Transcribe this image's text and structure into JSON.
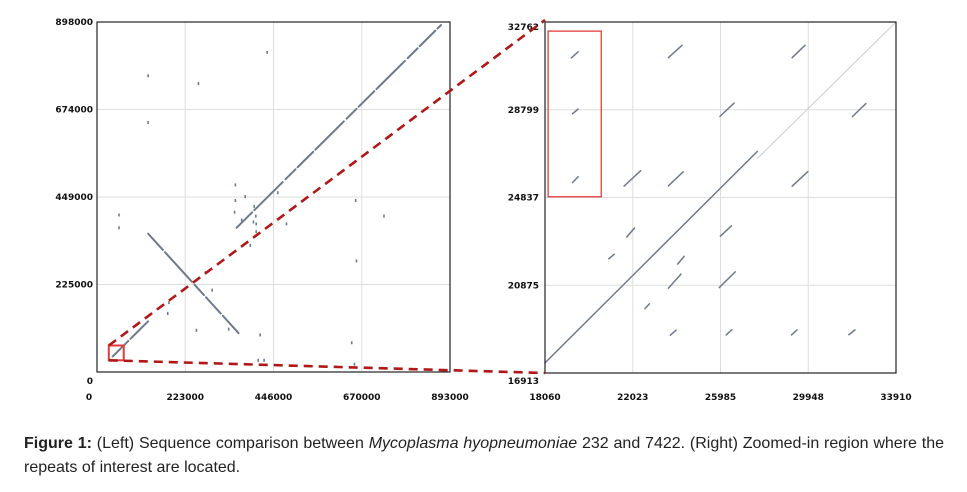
{
  "chart_data": [
    {
      "type": "scatter",
      "panel": "left",
      "xlim": [
        0,
        898000
      ],
      "ylim": [
        0,
        898000
      ],
      "x_ticks": [
        "0",
        "223000",
        "446000",
        "670000",
        "893000"
      ],
      "y_ticks": [
        "0",
        "225000",
        "449000",
        "674000",
        "898000"
      ],
      "grid": true,
      "highlight_box": {
        "x0": 30000,
        "x1": 68000,
        "y0": 30000,
        "y1": 68000
      },
      "segments": [
        {
          "x0": 40000,
          "y0": 40000,
          "x1": 130000,
          "y1": 130000
        },
        {
          "x0": 355000,
          "y0": 370000,
          "x1": 875000,
          "y1": 890000
        },
        {
          "x0": 130000,
          "y0": 355000,
          "x1": 360000,
          "y1": 100000
        }
      ],
      "points": [
        {
          "x": 130000,
          "y": 760000
        },
        {
          "x": 130000,
          "y": 640000
        },
        {
          "x": 258000,
          "y": 740000
        },
        {
          "x": 433000,
          "y": 820000
        },
        {
          "x": 56000,
          "y": 403000
        },
        {
          "x": 56000,
          "y": 370000
        },
        {
          "x": 350000,
          "y": 410000
        },
        {
          "x": 352000,
          "y": 440000
        },
        {
          "x": 400000,
          "y": 425000
        },
        {
          "x": 404000,
          "y": 400000
        },
        {
          "x": 398000,
          "y": 385000
        },
        {
          "x": 405000,
          "y": 360000
        },
        {
          "x": 405000,
          "y": 380000
        },
        {
          "x": 368000,
          "y": 390000
        },
        {
          "x": 482000,
          "y": 380000
        },
        {
          "x": 730000,
          "y": 400000
        },
        {
          "x": 658000,
          "y": 440000
        },
        {
          "x": 293000,
          "y": 210000
        },
        {
          "x": 276000,
          "y": 255000
        },
        {
          "x": 183000,
          "y": 178000
        },
        {
          "x": 180000,
          "y": 150000
        },
        {
          "x": 253000,
          "y": 107000
        },
        {
          "x": 335000,
          "y": 110000
        },
        {
          "x": 415000,
          "y": 95000
        },
        {
          "x": 648000,
          "y": 75000
        },
        {
          "x": 655000,
          "y": 20000
        },
        {
          "x": 410000,
          "y": 30000
        },
        {
          "x": 425000,
          "y": 30000
        },
        {
          "x": 390000,
          "y": 325000
        },
        {
          "x": 377000,
          "y": 450000
        },
        {
          "x": 352000,
          "y": 480000
        },
        {
          "x": 460000,
          "y": 460000
        },
        {
          "x": 660000,
          "y": 285000
        }
      ]
    },
    {
      "type": "scatter",
      "panel": "right",
      "xlim": [
        18060,
        33910
      ],
      "ylim": [
        16913,
        32762
      ],
      "x_ticks": [
        "18060",
        "22023",
        "25985",
        "29948",
        "33910"
      ],
      "y_ticks": [
        "16913",
        "20875",
        "24837",
        "28799",
        "32762"
      ],
      "grid": true,
      "highlight_box": {
        "x0": 18200,
        "x1": 20600,
        "y0": 24870,
        "y1": 32350
      },
      "diagonal_faint": {
        "x0": 27650,
        "y0": 26600,
        "x1": 33910,
        "y1": 32762
      },
      "segments": [
        {
          "x0": 18060,
          "y0": 17370,
          "x1": 27650,
          "y1": 26920
        },
        {
          "x0": 19250,
          "y0": 31140,
          "x1": 19560,
          "y1": 31420
        },
        {
          "x0": 19300,
          "y0": 28620,
          "x1": 19560,
          "y1": 28830
        },
        {
          "x0": 19300,
          "y0": 25510,
          "x1": 19560,
          "y1": 25780
        },
        {
          "x0": 23630,
          "y0": 31150,
          "x1": 24250,
          "y1": 31710
        },
        {
          "x0": 29220,
          "y0": 31150,
          "x1": 29800,
          "y1": 31710
        },
        {
          "x0": 25960,
          "y0": 28500,
          "x1": 26600,
          "y1": 29100
        },
        {
          "x0": 31940,
          "y0": 28490,
          "x1": 32550,
          "y1": 29080
        },
        {
          "x0": 21630,
          "y0": 25350,
          "x1": 22380,
          "y1": 26050
        },
        {
          "x0": 23630,
          "y0": 25360,
          "x1": 24300,
          "y1": 26000
        },
        {
          "x0": 29220,
          "y0": 25350,
          "x1": 29930,
          "y1": 26010
        },
        {
          "x0": 21750,
          "y0": 23050,
          "x1": 22100,
          "y1": 23460
        },
        {
          "x0": 25980,
          "y0": 23090,
          "x1": 26480,
          "y1": 23560
        },
        {
          "x0": 20940,
          "y0": 22070,
          "x1": 21190,
          "y1": 22280
        },
        {
          "x0": 23630,
          "y0": 20740,
          "x1": 24200,
          "y1": 21380
        },
        {
          "x0": 25930,
          "y0": 20770,
          "x1": 26650,
          "y1": 21480
        },
        {
          "x0": 24050,
          "y0": 21830,
          "x1": 24340,
          "y1": 22180
        },
        {
          "x0": 22570,
          "y0": 19820,
          "x1": 22780,
          "y1": 20040
        },
        {
          "x0": 23720,
          "y0": 18620,
          "x1": 23980,
          "y1": 18850
        },
        {
          "x0": 26240,
          "y0": 18630,
          "x1": 26500,
          "y1": 18870
        },
        {
          "x0": 29190,
          "y0": 18630,
          "x1": 29440,
          "y1": 18860
        },
        {
          "x0": 31780,
          "y0": 18640,
          "x1": 32060,
          "y1": 18860
        }
      ]
    }
  ],
  "caption": {
    "label": "Figure 1:",
    "part1": " (Left) Sequence comparison between ",
    "species": "Mycoplasma hyopneumoniae",
    "part2": " 232 and 7422. (Right) Zoomed-in region where the repeats of interest are located."
  },
  "colors": {
    "line": "#6b7a8c",
    "faint": "#c8ccd2",
    "grid": "#dddddd",
    "highlight": "#e33b3b",
    "connector": "#b01818"
  }
}
